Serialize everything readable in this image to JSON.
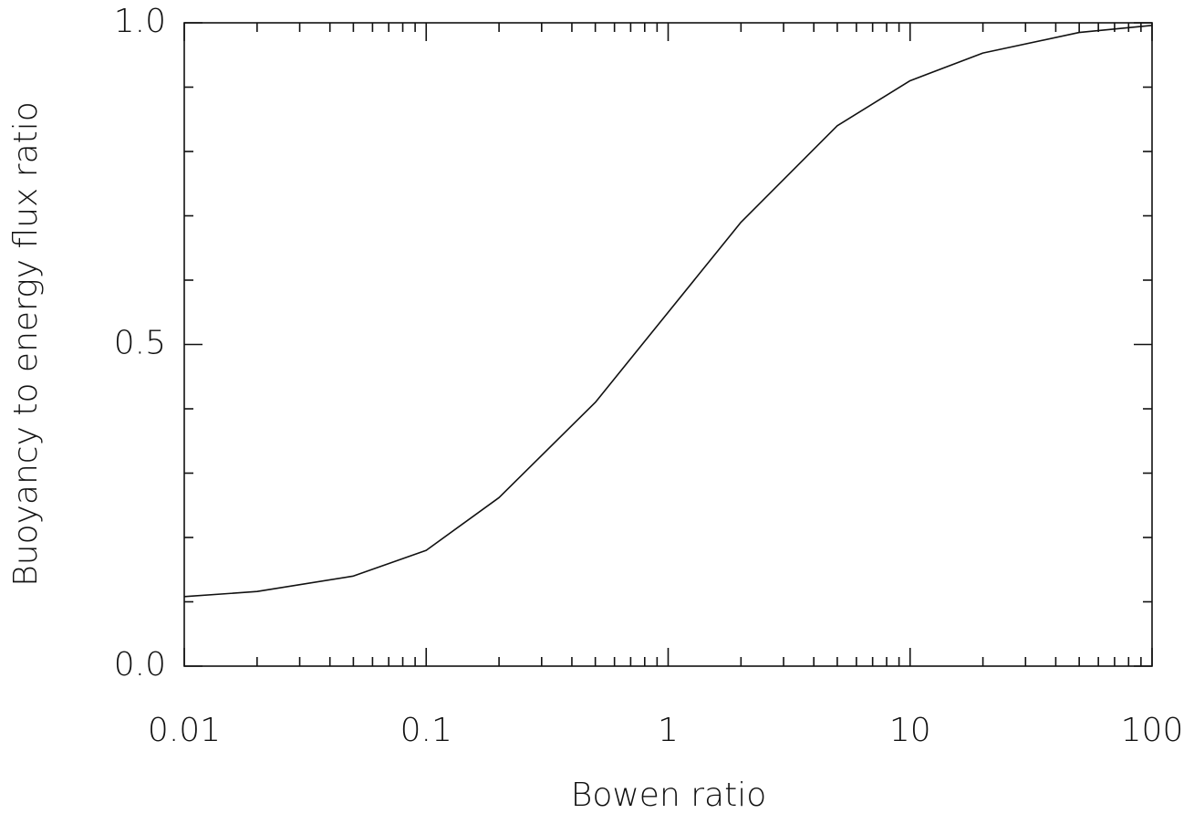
{
  "chart_data": {
    "type": "line",
    "x_label": "Bowen ratio",
    "y_label": "Buoyancy to energy flux ratio",
    "xlog": true,
    "x": [
      0.01,
      0.02,
      0.05,
      0.1,
      0.2,
      0.5,
      1,
      2,
      5,
      10,
      20,
      50,
      100
    ],
    "series": [
      {
        "color": "#111111",
        "values": [
          0.108,
          0.116,
          0.14,
          0.18,
          0.262,
          0.41,
          0.55,
          0.69,
          0.84,
          0.91,
          0.953,
          0.985,
          0.996
        ]
      }
    ],
    "xlim": [
      0.01,
      100
    ],
    "xticks": [
      0.01,
      0.1,
      1,
      10,
      100
    ],
    "xminorticks": [
      0.02,
      0.03,
      0.04,
      0.05,
      0.06,
      0.07,
      0.08,
      0.09,
      0.2,
      0.3,
      0.4,
      0.5,
      0.6,
      0.7,
      0.8,
      0.9,
      2,
      3,
      4,
      5,
      6,
      7,
      8,
      9,
      20,
      30,
      40,
      50,
      60,
      70,
      80,
      90
    ],
    "ylim": [
      0,
      1
    ],
    "yticks": [
      {
        "value": 0,
        "label": "0.0"
      },
      0.5,
      {
        "value": 1,
        "label": "1.0"
      }
    ],
    "yminorticks": [
      0.1,
      0.2,
      0.3,
      0.4,
      0.6,
      0.7,
      0.8,
      0.9
    ]
  }
}
